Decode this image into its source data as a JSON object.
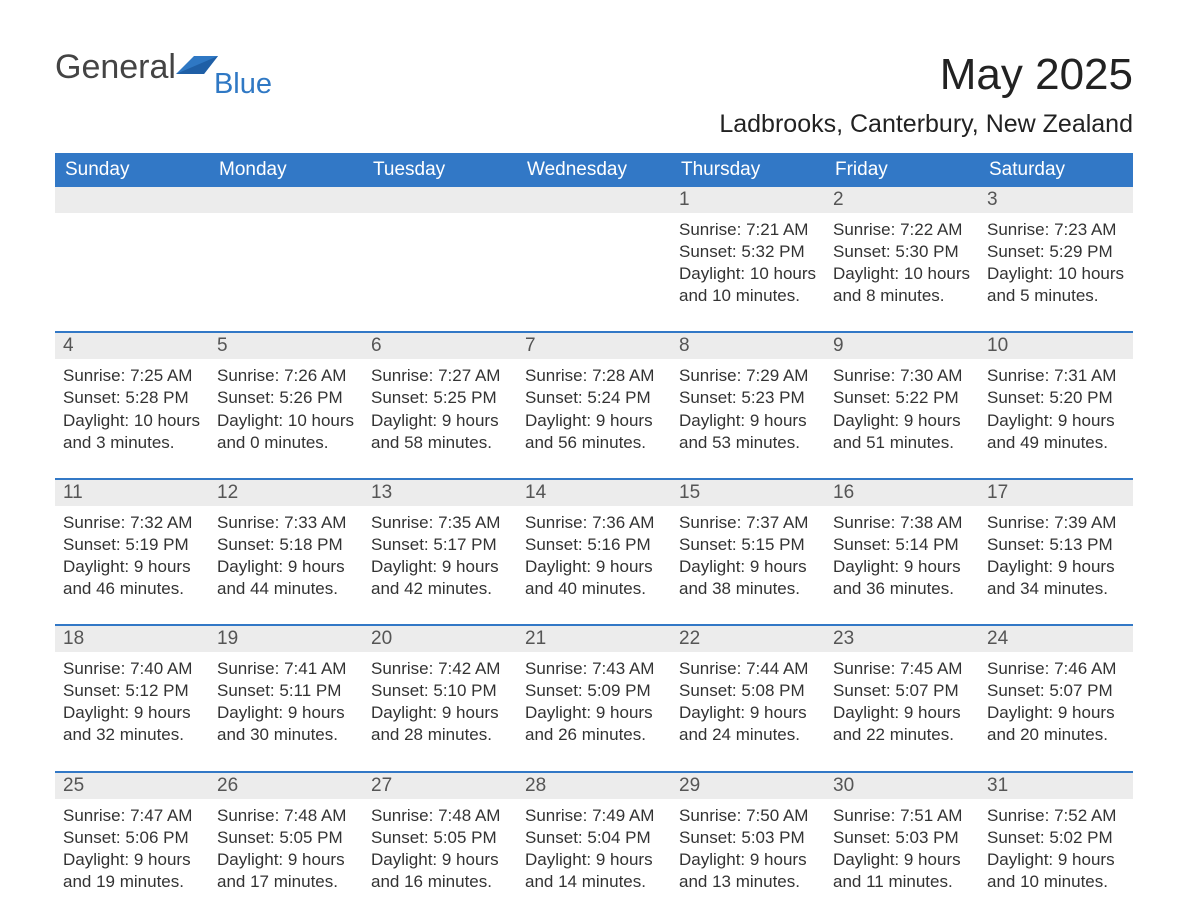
{
  "theme": {
    "header_bg": "#3278c6",
    "header_text": "#ffffff",
    "daynum_bg": "#ececec",
    "daynum_text": "#555555",
    "body_text": "#333333",
    "rule_color": "#3278c6",
    "page_bg": "#ffffff",
    "title_fontsize": 44,
    "location_fontsize": 25,
    "weekday_fontsize": 19,
    "daynum_fontsize": 19,
    "cell_fontsize": 17
  },
  "logo": {
    "word1": "General",
    "word2": "Blue",
    "word1_color": "#444444",
    "word2_color": "#2f78c4",
    "icon_color": "#2f78c4"
  },
  "header": {
    "title": "May 2025",
    "location": "Ladbrooks, Canterbury, New Zealand"
  },
  "calendar": {
    "type": "table",
    "month": "May",
    "year": 2025,
    "columns": 7,
    "weekday_labels": [
      "Sunday",
      "Monday",
      "Tuesday",
      "Wednesday",
      "Thursday",
      "Friday",
      "Saturday"
    ],
    "labels": {
      "sunrise_prefix": "Sunrise: ",
      "sunset_prefix": "Sunset: ",
      "daylight_prefix": "Daylight: "
    },
    "grid": [
      [
        {
          "blank": true
        },
        {
          "blank": true
        },
        {
          "blank": true
        },
        {
          "blank": true
        },
        {
          "day": 1,
          "sunrise": "7:21 AM",
          "sunset": "5:32 PM",
          "daylight": "10 hours and 10 minutes."
        },
        {
          "day": 2,
          "sunrise": "7:22 AM",
          "sunset": "5:30 PM",
          "daylight": "10 hours and 8 minutes."
        },
        {
          "day": 3,
          "sunrise": "7:23 AM",
          "sunset": "5:29 PM",
          "daylight": "10 hours and 5 minutes."
        }
      ],
      [
        {
          "day": 4,
          "sunrise": "7:25 AM",
          "sunset": "5:28 PM",
          "daylight": "10 hours and 3 minutes."
        },
        {
          "day": 5,
          "sunrise": "7:26 AM",
          "sunset": "5:26 PM",
          "daylight": "10 hours and 0 minutes."
        },
        {
          "day": 6,
          "sunrise": "7:27 AM",
          "sunset": "5:25 PM",
          "daylight": "9 hours and 58 minutes."
        },
        {
          "day": 7,
          "sunrise": "7:28 AM",
          "sunset": "5:24 PM",
          "daylight": "9 hours and 56 minutes."
        },
        {
          "day": 8,
          "sunrise": "7:29 AM",
          "sunset": "5:23 PM",
          "daylight": "9 hours and 53 minutes."
        },
        {
          "day": 9,
          "sunrise": "7:30 AM",
          "sunset": "5:22 PM",
          "daylight": "9 hours and 51 minutes."
        },
        {
          "day": 10,
          "sunrise": "7:31 AM",
          "sunset": "5:20 PM",
          "daylight": "9 hours and 49 minutes."
        }
      ],
      [
        {
          "day": 11,
          "sunrise": "7:32 AM",
          "sunset": "5:19 PM",
          "daylight": "9 hours and 46 minutes."
        },
        {
          "day": 12,
          "sunrise": "7:33 AM",
          "sunset": "5:18 PM",
          "daylight": "9 hours and 44 minutes."
        },
        {
          "day": 13,
          "sunrise": "7:35 AM",
          "sunset": "5:17 PM",
          "daylight": "9 hours and 42 minutes."
        },
        {
          "day": 14,
          "sunrise": "7:36 AM",
          "sunset": "5:16 PM",
          "daylight": "9 hours and 40 minutes."
        },
        {
          "day": 15,
          "sunrise": "7:37 AM",
          "sunset": "5:15 PM",
          "daylight": "9 hours and 38 minutes."
        },
        {
          "day": 16,
          "sunrise": "7:38 AM",
          "sunset": "5:14 PM",
          "daylight": "9 hours and 36 minutes."
        },
        {
          "day": 17,
          "sunrise": "7:39 AM",
          "sunset": "5:13 PM",
          "daylight": "9 hours and 34 minutes."
        }
      ],
      [
        {
          "day": 18,
          "sunrise": "7:40 AM",
          "sunset": "5:12 PM",
          "daylight": "9 hours and 32 minutes."
        },
        {
          "day": 19,
          "sunrise": "7:41 AM",
          "sunset": "5:11 PM",
          "daylight": "9 hours and 30 minutes."
        },
        {
          "day": 20,
          "sunrise": "7:42 AM",
          "sunset": "5:10 PM",
          "daylight": "9 hours and 28 minutes."
        },
        {
          "day": 21,
          "sunrise": "7:43 AM",
          "sunset": "5:09 PM",
          "daylight": "9 hours and 26 minutes."
        },
        {
          "day": 22,
          "sunrise": "7:44 AM",
          "sunset": "5:08 PM",
          "daylight": "9 hours and 24 minutes."
        },
        {
          "day": 23,
          "sunrise": "7:45 AM",
          "sunset": "5:07 PM",
          "daylight": "9 hours and 22 minutes."
        },
        {
          "day": 24,
          "sunrise": "7:46 AM",
          "sunset": "5:07 PM",
          "daylight": "9 hours and 20 minutes."
        }
      ],
      [
        {
          "day": 25,
          "sunrise": "7:47 AM",
          "sunset": "5:06 PM",
          "daylight": "9 hours and 19 minutes."
        },
        {
          "day": 26,
          "sunrise": "7:48 AM",
          "sunset": "5:05 PM",
          "daylight": "9 hours and 17 minutes."
        },
        {
          "day": 27,
          "sunrise": "7:48 AM",
          "sunset": "5:05 PM",
          "daylight": "9 hours and 16 minutes."
        },
        {
          "day": 28,
          "sunrise": "7:49 AM",
          "sunset": "5:04 PM",
          "daylight": "9 hours and 14 minutes."
        },
        {
          "day": 29,
          "sunrise": "7:50 AM",
          "sunset": "5:03 PM",
          "daylight": "9 hours and 13 minutes."
        },
        {
          "day": 30,
          "sunrise": "7:51 AM",
          "sunset": "5:03 PM",
          "daylight": "9 hours and 11 minutes."
        },
        {
          "day": 31,
          "sunrise": "7:52 AM",
          "sunset": "5:02 PM",
          "daylight": "9 hours and 10 minutes."
        }
      ]
    ]
  }
}
